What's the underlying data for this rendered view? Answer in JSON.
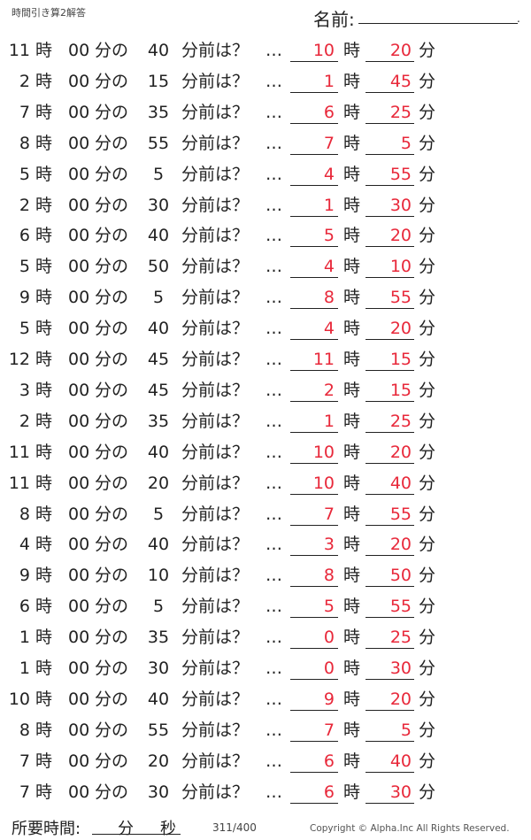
{
  "header": {
    "title": "時間引き算2解答",
    "name_label": "名前:",
    "name_end": "."
  },
  "labels": {
    "hour": "時",
    "zero_min": "00",
    "min_no": "分の",
    "before": "分前は？",
    "ellipsis": "…",
    "min": "分"
  },
  "answer_color": "#e8283a",
  "rows": [
    {
      "h": "11",
      "m": "40",
      "ah": "10",
      "am": "20"
    },
    {
      "h": "2",
      "m": "15",
      "ah": "1",
      "am": "45"
    },
    {
      "h": "7",
      "m": "35",
      "ah": "6",
      "am": "25"
    },
    {
      "h": "8",
      "m": "55",
      "ah": "7",
      "am": "5"
    },
    {
      "h": "5",
      "m": "5",
      "ah": "4",
      "am": "55"
    },
    {
      "h": "2",
      "m": "30",
      "ah": "1",
      "am": "30"
    },
    {
      "h": "6",
      "m": "40",
      "ah": "5",
      "am": "20"
    },
    {
      "h": "5",
      "m": "50",
      "ah": "4",
      "am": "10"
    },
    {
      "h": "9",
      "m": "5",
      "ah": "8",
      "am": "55"
    },
    {
      "h": "5",
      "m": "40",
      "ah": "4",
      "am": "20"
    },
    {
      "h": "12",
      "m": "45",
      "ah": "11",
      "am": "15"
    },
    {
      "h": "3",
      "m": "45",
      "ah": "2",
      "am": "15"
    },
    {
      "h": "2",
      "m": "35",
      "ah": "1",
      "am": "25"
    },
    {
      "h": "11",
      "m": "40",
      "ah": "10",
      "am": "20"
    },
    {
      "h": "11",
      "m": "20",
      "ah": "10",
      "am": "40"
    },
    {
      "h": "8",
      "m": "5",
      "ah": "7",
      "am": "55"
    },
    {
      "h": "4",
      "m": "40",
      "ah": "3",
      "am": "20"
    },
    {
      "h": "9",
      "m": "10",
      "ah": "8",
      "am": "50"
    },
    {
      "h": "6",
      "m": "5",
      "ah": "5",
      "am": "55"
    },
    {
      "h": "1",
      "m": "35",
      "ah": "0",
      "am": "25"
    },
    {
      "h": "1",
      "m": "30",
      "ah": "0",
      "am": "30"
    },
    {
      "h": "10",
      "m": "40",
      "ah": "9",
      "am": "20"
    },
    {
      "h": "8",
      "m": "55",
      "ah": "7",
      "am": "5"
    },
    {
      "h": "7",
      "m": "20",
      "ah": "6",
      "am": "40"
    },
    {
      "h": "7",
      "m": "30",
      "ah": "6",
      "am": "30"
    }
  ],
  "footer": {
    "time_label": "所要時間:",
    "min": "分",
    "sec": "秒",
    "page": "311/400",
    "copyright": "Copyright ©  Alpha.Inc All Rights Reserved."
  }
}
